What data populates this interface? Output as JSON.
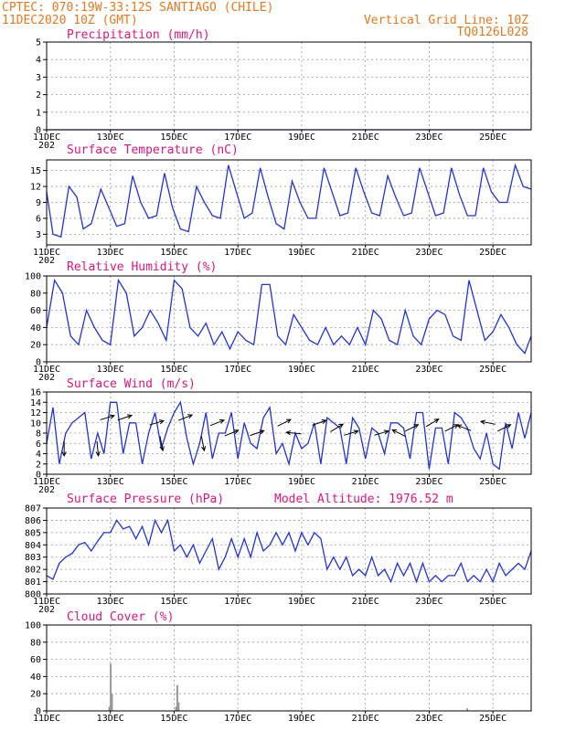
{
  "header": {
    "station": "CPTEC:    070:19W-33:12S  SANTIAGO (CHILE)",
    "run": "11DEC2020  10Z (GMT)",
    "grid_note": "Vertical Grid Line: 10Z",
    "code": "TQ0126L028"
  },
  "colors": {
    "series": "#2233dd",
    "title": "#e0157f",
    "header": "#e8781e",
    "wind_arrow": "#000000",
    "cloud_bar": "#999999"
  },
  "x_axis": {
    "labels": [
      "11DEC",
      "13DEC",
      "15DEC",
      "17DEC",
      "19DEC",
      "21DEC",
      "23DEC",
      "25DEC"
    ],
    "label_days": [
      0,
      2,
      4,
      6,
      8,
      10,
      12,
      14
    ],
    "range_days": [
      0,
      15.2
    ],
    "year_fragment": "202"
  },
  "chart_data": [
    {
      "id": "precip",
      "type": "line",
      "title": "Precipitation  (mm/h)",
      "ylim": [
        0,
        5
      ],
      "yticks": [
        0,
        1,
        2,
        3,
        4,
        5
      ],
      "series": [
        {
          "x": [
            0,
            15.2
          ],
          "y": [
            0,
            0
          ]
        }
      ]
    },
    {
      "id": "temp",
      "type": "line",
      "title": "Surface Temperature  (nC)",
      "ylim": [
        1,
        17
      ],
      "yticks": [
        3,
        6,
        9,
        12,
        15
      ],
      "series": [
        {
          "x": [
            0,
            0.2,
            0.45,
            0.7,
            0.95,
            1.15,
            1.4,
            1.7,
            1.95,
            2.2,
            2.45,
            2.7,
            2.95,
            3.2,
            3.45,
            3.7,
            3.95,
            4.2,
            4.45,
            4.7,
            4.95,
            5.2,
            5.45,
            5.7,
            5.95,
            6.2,
            6.45,
            6.7,
            6.95,
            7.2,
            7.45,
            7.7,
            7.95,
            8.2,
            8.45,
            8.7,
            8.95,
            9.2,
            9.45,
            9.7,
            9.95,
            10.2,
            10.45,
            10.7,
            10.95,
            11.2,
            11.45,
            11.7,
            11.95,
            12.2,
            12.45,
            12.7,
            12.95,
            13.2,
            13.45,
            13.7,
            13.95,
            14.2,
            14.45,
            14.7,
            14.95,
            15.2
          ],
          "y": [
            11,
            3,
            2.5,
            12,
            10,
            4,
            5,
            11.5,
            8,
            4.5,
            5,
            14,
            9,
            6,
            6.5,
            14.5,
            8,
            4,
            3.5,
            12,
            9,
            6.5,
            6,
            16,
            11,
            6,
            7,
            15.5,
            10,
            5,
            4,
            13,
            9,
            6,
            6,
            15.5,
            11,
            6.5,
            7,
            15.5,
            11,
            7,
            6.5,
            14,
            10,
            6.5,
            7,
            15.5,
            11,
            6.5,
            7,
            15.5,
            10.5,
            6.5,
            6.5,
            15.5,
            11,
            9,
            9,
            16,
            12,
            11.5
          ]
        }
      ]
    },
    {
      "id": "rh",
      "type": "line",
      "title": "Relative Humidity  (%)",
      "ylim": [
        0,
        100
      ],
      "yticks": [
        0,
        20,
        40,
        60,
        80,
        100
      ],
      "series": [
        {
          "x": [
            0,
            0.25,
            0.5,
            0.75,
            1.0,
            1.25,
            1.5,
            1.75,
            2.0,
            2.25,
            2.5,
            2.75,
            3.0,
            3.25,
            3.5,
            3.75,
            4.0,
            4.25,
            4.5,
            4.75,
            5.0,
            5.25,
            5.5,
            5.75,
            6.0,
            6.25,
            6.5,
            6.75,
            7.0,
            7.25,
            7.5,
            7.75,
            8.0,
            8.25,
            8.5,
            8.75,
            9.0,
            9.25,
            9.5,
            9.75,
            10.0,
            10.25,
            10.5,
            10.75,
            11.0,
            11.25,
            11.5,
            11.75,
            12.0,
            12.25,
            12.5,
            12.75,
            13.0,
            13.25,
            13.5,
            13.75,
            14.0,
            14.25,
            14.5,
            14.75,
            15.0,
            15.2
          ],
          "y": [
            40,
            95,
            80,
            30,
            20,
            60,
            40,
            25,
            20,
            95,
            80,
            30,
            40,
            60,
            45,
            25,
            95,
            85,
            40,
            30,
            45,
            20,
            35,
            15,
            35,
            25,
            20,
            90,
            90,
            30,
            20,
            55,
            40,
            25,
            20,
            40,
            20,
            30,
            20,
            40,
            20,
            60,
            50,
            25,
            20,
            60,
            30,
            20,
            50,
            60,
            55,
            30,
            25,
            95,
            60,
            25,
            35,
            55,
            40,
            20,
            10,
            30
          ]
        }
      ]
    },
    {
      "id": "wind",
      "type": "line",
      "title": "Surface Wind  (m/s)",
      "ylim": [
        0,
        16
      ],
      "yticks": [
        0,
        2,
        4,
        6,
        8,
        10,
        12,
        14,
        16
      ],
      "series": [
        {
          "x": [
            0,
            0.2,
            0.4,
            0.6,
            0.8,
            1.0,
            1.2,
            1.4,
            1.6,
            1.8,
            2.0,
            2.2,
            2.4,
            2.6,
            2.8,
            3.0,
            3.2,
            3.4,
            3.6,
            3.8,
            4.0,
            4.2,
            4.4,
            4.6,
            4.8,
            5.0,
            5.2,
            5.4,
            5.6,
            5.8,
            6.0,
            6.2,
            6.4,
            6.6,
            6.8,
            7.0,
            7.2,
            7.4,
            7.6,
            7.8,
            8.0,
            8.2,
            8.4,
            8.6,
            8.8,
            9.0,
            9.2,
            9.4,
            9.6,
            9.8,
            10.0,
            10.2,
            10.4,
            10.6,
            10.8,
            11.0,
            11.2,
            11.4,
            11.6,
            11.8,
            12.0,
            12.2,
            12.4,
            12.6,
            12.8,
            13.0,
            13.2,
            13.4,
            13.6,
            13.8,
            14.0,
            14.2,
            14.4,
            14.6,
            14.8,
            15.0,
            15.2
          ],
          "y": [
            6,
            13,
            2,
            8,
            10,
            11,
            12,
            3,
            8,
            4,
            14,
            14,
            4,
            10,
            10,
            2,
            8,
            12,
            5,
            9,
            12,
            14,
            7,
            2,
            6,
            12,
            3,
            8,
            8,
            12,
            3,
            10,
            6,
            5,
            11,
            13,
            4,
            6,
            2,
            8,
            5,
            6,
            10,
            2,
            11,
            10,
            9,
            2,
            11,
            9,
            3,
            9,
            8,
            4,
            10,
            10,
            9,
            3,
            12,
            12,
            1,
            9,
            9,
            2,
            12,
            11,
            9,
            5,
            3,
            8,
            2,
            1,
            10,
            5,
            12,
            7,
            12
          ]
        }
      ],
      "barbs": [
        {
          "x": 0.55,
          "y": 5,
          "u": 0,
          "v": -1
        },
        {
          "x": 1.6,
          "y": 5,
          "u": 0.1,
          "v": -1
        },
        {
          "x": 1.9,
          "y": 11,
          "u": 1,
          "v": 0.3
        },
        {
          "x": 2.45,
          "y": 11,
          "u": 1,
          "v": 0.35
        },
        {
          "x": 3.45,
          "y": 10,
          "u": 1,
          "v": 0.3
        },
        {
          "x": 3.6,
          "y": 6,
          "u": 0.2,
          "v": -1
        },
        {
          "x": 4.35,
          "y": 11,
          "u": 1,
          "v": 0.4
        },
        {
          "x": 4.9,
          "y": 6,
          "u": 0.2,
          "v": -1
        },
        {
          "x": 5.35,
          "y": 10,
          "u": 1,
          "v": 0.4
        },
        {
          "x": 5.8,
          "y": 8,
          "u": 1,
          "v": 0.4
        },
        {
          "x": 6.6,
          "y": 8,
          "u": 1,
          "v": 0.35
        },
        {
          "x": 7.45,
          "y": 10,
          "u": 1,
          "v": 0.5
        },
        {
          "x": 7.75,
          "y": 8,
          "u": -1,
          "v": 0.1
        },
        {
          "x": 8.55,
          "y": 10,
          "u": 1,
          "v": 0.35
        },
        {
          "x": 9.1,
          "y": 9,
          "u": 1,
          "v": 0.6
        },
        {
          "x": 9.55,
          "y": 8,
          "u": 1,
          "v": 0.3
        },
        {
          "x": 10.5,
          "y": 8,
          "u": 1,
          "v": 0.3
        },
        {
          "x": 11.05,
          "y": 8,
          "u": -1,
          "v": 0.5
        },
        {
          "x": 11.45,
          "y": 9,
          "u": 1,
          "v": 0.5
        },
        {
          "x": 12.1,
          "y": 10,
          "u": 1,
          "v": 0.6
        },
        {
          "x": 12.7,
          "y": 9,
          "u": 1,
          "v": 0.5
        },
        {
          "x": 13.1,
          "y": 9,
          "u": -1,
          "v": 0.4
        },
        {
          "x": 13.85,
          "y": 10,
          "u": -1,
          "v": 0.2
        },
        {
          "x": 14.35,
          "y": 9,
          "u": 1,
          "v": 0.5
        }
      ]
    },
    {
      "id": "pres",
      "type": "line",
      "title": "Surface Pressure  (hPa)",
      "annotation": "Model Altitude:  1976.52  m",
      "ylim": [
        800,
        807
      ],
      "yticks": [
        800,
        801,
        802,
        803,
        804,
        805,
        806,
        807
      ],
      "series": [
        {
          "x": [
            0,
            0.2,
            0.4,
            0.6,
            0.8,
            1.0,
            1.2,
            1.4,
            1.6,
            1.8,
            2.0,
            2.2,
            2.4,
            2.6,
            2.8,
            3.0,
            3.2,
            3.4,
            3.6,
            3.8,
            4.0,
            4.2,
            4.4,
            4.6,
            4.8,
            5.0,
            5.2,
            5.4,
            5.6,
            5.8,
            6.0,
            6.2,
            6.4,
            6.6,
            6.8,
            7.0,
            7.2,
            7.4,
            7.6,
            7.8,
            8.0,
            8.2,
            8.4,
            8.6,
            8.8,
            9.0,
            9.2,
            9.4,
            9.6,
            9.8,
            10.0,
            10.2,
            10.4,
            10.6,
            10.8,
            11.0,
            11.2,
            11.4,
            11.6,
            11.8,
            12.0,
            12.2,
            12.4,
            12.6,
            12.8,
            13.0,
            13.2,
            13.4,
            13.6,
            13.8,
            14.0,
            14.2,
            14.4,
            14.6,
            14.8,
            15.0,
            15.2
          ],
          "y": [
            801.5,
            801.2,
            802.5,
            803.0,
            803.3,
            804.0,
            804.2,
            803.5,
            804.3,
            805.0,
            805.0,
            806.0,
            805.3,
            805.5,
            804.5,
            805.5,
            804.0,
            806.0,
            805.0,
            806.0,
            803.5,
            804.0,
            803.0,
            804.0,
            802.5,
            803.5,
            804.5,
            802.0,
            803.0,
            804.5,
            803.0,
            804.5,
            803.0,
            805.0,
            803.5,
            804.0,
            805.0,
            804.0,
            805.0,
            803.5,
            805.0,
            804.0,
            805.0,
            804.5,
            802.0,
            803.0,
            802.0,
            803.0,
            801.5,
            802.0,
            801.5,
            803.0,
            801.5,
            802.0,
            801.0,
            802.5,
            801.5,
            802.5,
            801.0,
            802.5,
            801.0,
            801.5,
            801.0,
            801.5,
            801.5,
            802.5,
            801.0,
            801.5,
            801.0,
            802.0,
            801.0,
            802.5,
            801.5,
            802.0,
            802.5,
            802.0,
            803.5
          ]
        }
      ]
    },
    {
      "id": "cloud",
      "type": "bar",
      "title": "Cloud Cover  (%)",
      "ylim": [
        0,
        100
      ],
      "yticks": [
        0,
        20,
        40,
        60,
        80,
        100
      ],
      "bars": [
        {
          "x": 1.97,
          "value": 5
        },
        {
          "x": 2.01,
          "value": 55
        },
        {
          "x": 2.05,
          "value": 20
        },
        {
          "x": 4.06,
          "value": 5
        },
        {
          "x": 4.1,
          "value": 30
        },
        {
          "x": 4.14,
          "value": 10
        },
        {
          "x": 13.2,
          "value": 3
        }
      ]
    }
  ]
}
